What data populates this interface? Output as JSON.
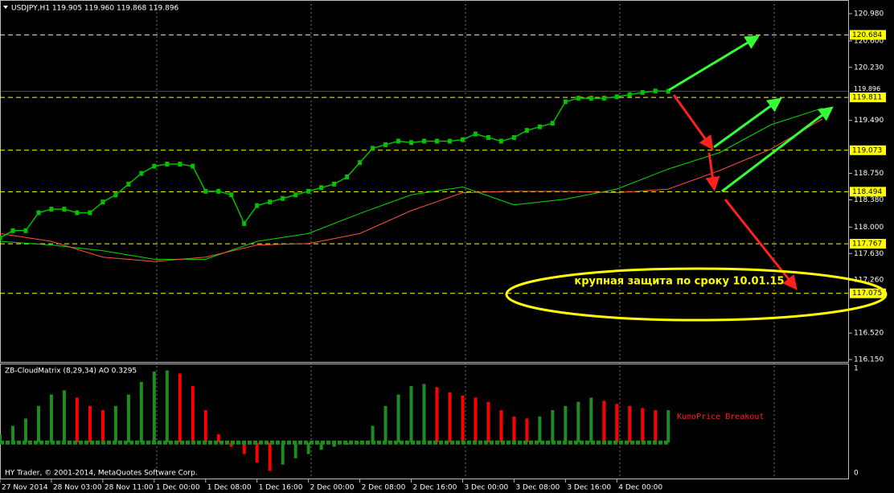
{
  "chart_data": [
    {
      "type": "line",
      "title": "USDJPY,H1  119.905 119.960 119.868 119.896",
      "xlim": [
        0,
        132
      ],
      "ylim": [
        116.117,
        121.171
      ],
      "xticks": [
        {
          "value": 0,
          "label": "27 Nov 2014"
        },
        {
          "value": 8,
          "label": "28 Nov 03:00"
        },
        {
          "value": 16,
          "label": "28 Nov 11:00"
        },
        {
          "value": 24,
          "label": "1 Dec 00:00"
        },
        {
          "value": 32,
          "label": "1 Dec 08:00"
        },
        {
          "value": 40,
          "label": "1 Dec 16:00"
        },
        {
          "value": 48,
          "label": "2 Dec 00:00"
        },
        {
          "value": 56,
          "label": "2 Dec 08:00"
        },
        {
          "value": 64,
          "label": "2 Dec 16:00"
        },
        {
          "value": 72,
          "label": "3 Dec 00:00"
        },
        {
          "value": 80,
          "label": "3 Dec 08:00"
        },
        {
          "value": 88,
          "label": "3 Dec 16:00"
        },
        {
          "value": 96,
          "label": "4 Dec 00:00"
        }
      ],
      "yticks": [
        {
          "value": 120.98,
          "label": "120.980"
        },
        {
          "value": 120.6,
          "label": "120.600"
        },
        {
          "value": 120.23,
          "label": "120.230"
        },
        {
          "value": 119.49,
          "label": "119.490"
        },
        {
          "value": 118.75,
          "label": "118.750"
        },
        {
          "value": 118.38,
          "label": "118.380"
        },
        {
          "value": 118.0,
          "label": "118.000"
        },
        {
          "value": 117.63,
          "label": "117.630"
        },
        {
          "value": 117.26,
          "label": "117.260"
        },
        {
          "value": 116.52,
          "label": "116.520"
        },
        {
          "value": 116.15,
          "label": "116.150"
        }
      ],
      "series": [
        {
          "color": "#00c000",
          "x": [
            0,
            2,
            4,
            6,
            8,
            10,
            12,
            14,
            16,
            18,
            20,
            22,
            24,
            26,
            28,
            30,
            32,
            34,
            36,
            38,
            40,
            42,
            44,
            46,
            48,
            50,
            52,
            54,
            56,
            58,
            60,
            62,
            64,
            66,
            68,
            70,
            72,
            74,
            76,
            78,
            80,
            82,
            84,
            86,
            88,
            90,
            92,
            94,
            96,
            98,
            100,
            102,
            104
          ],
          "values": [
            117.85,
            117.95,
            117.95,
            118.2,
            118.25,
            118.25,
            118.2,
            118.2,
            118.35,
            118.45,
            118.6,
            118.75,
            118.85,
            118.88,
            118.88,
            118.85,
            118.5,
            118.5,
            118.45,
            118.05,
            118.3,
            118.35,
            118.4,
            118.45,
            118.5,
            118.55,
            118.6,
            118.7,
            118.9,
            119.1,
            119.15,
            119.2,
            119.18,
            119.2,
            119.2,
            119.2,
            119.22,
            119.3,
            119.25,
            119.2,
            119.25,
            119.35,
            119.4,
            119.45,
            119.75,
            119.8,
            119.8,
            119.8,
            119.82,
            119.85,
            119.88,
            119.9,
            119.896
          ]
        },
        {
          "color": "#00e000",
          "x": [
            0,
            8,
            16,
            24,
            32,
            40,
            48,
            56,
            64,
            72,
            80,
            88,
            96,
            104,
            112,
            120,
            128
          ],
          "values": [
            117.8,
            117.75,
            117.67,
            117.55,
            117.55,
            117.8,
            117.91,
            118.19,
            118.45,
            118.56,
            118.31,
            118.39,
            118.53,
            118.81,
            119.04,
            119.43,
            119.66
          ]
        },
        {
          "color": "#ff5040",
          "x": [
            0,
            8,
            16,
            24,
            32,
            40,
            48,
            56,
            64,
            72,
            80,
            88,
            96,
            104,
            112,
            120,
            128
          ],
          "values": [
            117.91,
            117.8,
            117.58,
            117.52,
            117.58,
            117.75,
            117.77,
            117.91,
            118.23,
            118.48,
            118.5,
            118.5,
            118.48,
            118.53,
            118.79,
            119.09,
            119.51
          ]
        }
      ],
      "levels": [
        120.684,
        119.811,
        119.073,
        118.494,
        117.767,
        117.075
      ],
      "level_color": "#ffff00",
      "current_price": 119.896,
      "annotation": "крупная защита по сроку 10.01.15"
    },
    {
      "type": "bar",
      "title": "ZB-CloudMatrix (8,29,34)  AO 0.3295",
      "label": "KumoPrice Breakout",
      "ylim": [
        0,
        1
      ],
      "yticks": [
        0,
        1
      ],
      "signal_line": 0.29,
      "up_color": "#1e8c1e",
      "down_color": "#ff0000",
      "x": [
        0,
        2,
        4,
        6,
        8,
        10,
        12,
        14,
        16,
        18,
        20,
        22,
        24,
        26,
        28,
        30,
        32,
        34,
        36,
        38,
        40,
        42,
        44,
        46,
        48,
        50,
        52,
        54,
        56,
        58,
        60,
        62,
        64,
        66,
        68,
        70,
        72,
        74,
        76,
        78,
        80,
        82,
        84,
        86,
        88,
        90,
        92,
        94,
        96,
        98,
        100,
        102,
        104
      ],
      "values": [
        0.37,
        0.45,
        0.52,
        0.64,
        0.75,
        0.79,
        0.72,
        0.64,
        0.6,
        0.64,
        0.75,
        0.87,
        0.97,
        0.98,
        0.95,
        0.83,
        0.6,
        0.37,
        0.25,
        0.18,
        0.1,
        0.02,
        0.08,
        0.14,
        0.18,
        0.22,
        0.25,
        0.27,
        0.29,
        0.45,
        0.64,
        0.75,
        0.83,
        0.85,
        0.82,
        0.77,
        0.74,
        0.72,
        0.68,
        0.6,
        0.54,
        0.52,
        0.54,
        0.6,
        0.64,
        0.68,
        0.72,
        0.69,
        0.66,
        0.64,
        0.62,
        0.6,
        0.6
      ]
    }
  ],
  "footer": "HY Trader, © 2001-2014, MetaQuotes Software Corp."
}
